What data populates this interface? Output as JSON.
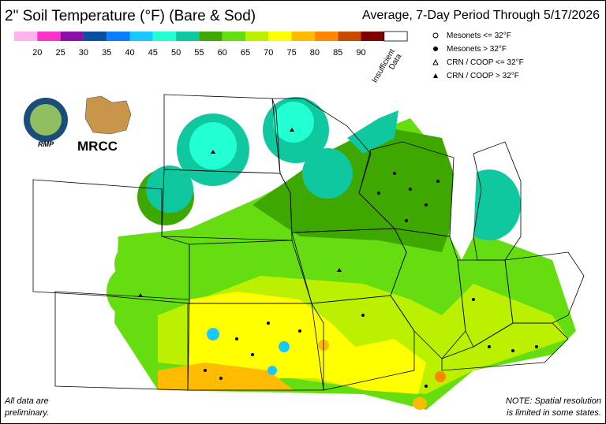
{
  "header": {
    "title": "2\" Soil Temperature (°F) (Bare & Sod)",
    "period": "Average, 7-Day Period Through 5/17/2026"
  },
  "legend": {
    "colors": [
      "#ffb3ec",
      "#ff33cc",
      "#8a0fa8",
      "#0a4fa0",
      "#0a7cff",
      "#18c8ff",
      "#22ffd2",
      "#10c8a0",
      "#3fa800",
      "#66dd11",
      "#bbf000",
      "#ffff00",
      "#ffbb00",
      "#ff8800",
      "#c84a00",
      "#800000"
    ],
    "ticks": [
      20,
      25,
      30,
      35,
      40,
      45,
      50,
      55,
      60,
      65,
      70,
      75,
      80,
      85,
      90
    ],
    "missing": {
      "color": "#ffffff",
      "label": [
        "Insufficient",
        "Data"
      ]
    }
  },
  "key": [
    "Mesonets <= 32°F",
    "Mesonets > 32°F",
    "CRN / COOP <= 32°F",
    "CRN / COOP > 32°F"
  ],
  "logos": {
    "left": "RMP",
    "right": "MRCC"
  },
  "notes": {
    "left": [
      "All data are",
      "preliminary."
    ],
    "right": [
      "NOTE: Spatial resolution",
      "is limited in some states."
    ]
  }
}
